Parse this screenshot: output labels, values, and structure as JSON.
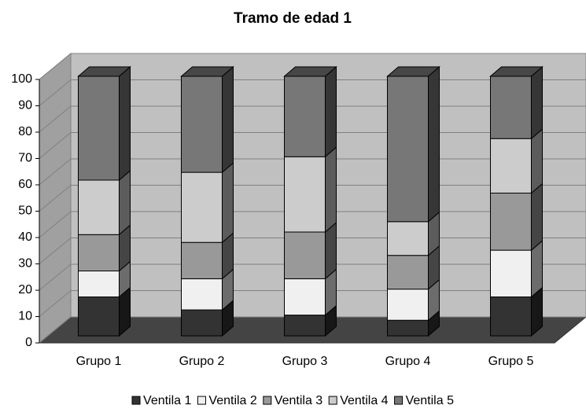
{
  "chart_data": {
    "type": "bar3d_stacked",
    "title": "Tramo de edad 1",
    "categories": [
      "Grupo 1",
      "Grupo 2",
      "Grupo 3",
      "Grupo 4",
      "Grupo 5"
    ],
    "series": [
      {
        "name": "Ventila 1",
        "color": "#333333",
        "values": [
          15,
          10,
          8,
          6,
          15
        ]
      },
      {
        "name": "Ventila 2",
        "color": "#f0f0f0",
        "values": [
          10,
          12,
          14,
          12,
          18
        ]
      },
      {
        "name": "Ventila 3",
        "color": "#999999",
        "values": [
          14,
          14,
          18,
          13,
          22
        ]
      },
      {
        "name": "Ventila 4",
        "color": "#cccccc",
        "values": [
          21,
          27,
          29,
          13,
          21
        ]
      },
      {
        "name": "Ventila 5",
        "color": "#777777",
        "values": [
          40,
          37,
          31,
          56,
          24
        ]
      }
    ],
    "ylim": [
      0,
      100
    ],
    "yticks": [
      0,
      10,
      20,
      30,
      40,
      50,
      60,
      70,
      80,
      90,
      100
    ],
    "grid": true
  }
}
